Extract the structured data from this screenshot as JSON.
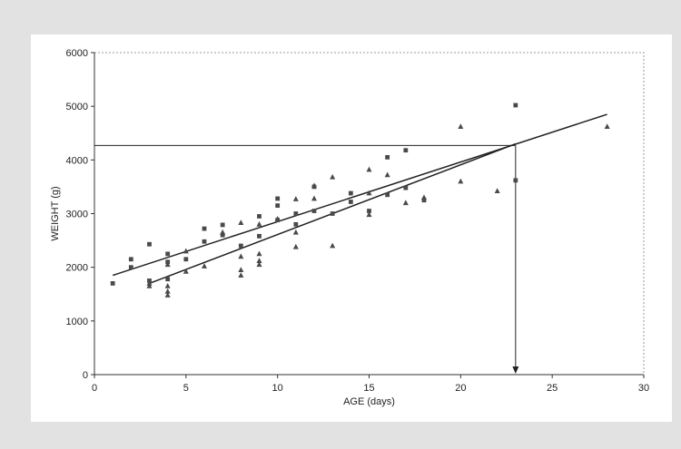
{
  "chart_data": {
    "type": "scatter",
    "xlabel": "AGE (days)",
    "ylabel": "WEIGHT (g)",
    "xlim": [
      0,
      30
    ],
    "ylim": [
      0,
      6000
    ],
    "xticks": [
      0,
      5,
      10,
      15,
      20,
      25,
      30
    ],
    "yticks": [
      0,
      1000,
      2000,
      3000,
      4000,
      5000,
      6000
    ],
    "grid": false,
    "series": [
      {
        "marker": "square",
        "points": [
          [
            1,
            1700
          ],
          [
            2,
            2000
          ],
          [
            2,
            2150
          ],
          [
            3,
            1750
          ],
          [
            3,
            2430
          ],
          [
            4,
            1780
          ],
          [
            4,
            2100
          ],
          [
            4,
            2250
          ],
          [
            5,
            2150
          ],
          [
            6,
            2480
          ],
          [
            6,
            2720
          ],
          [
            7,
            2600
          ],
          [
            7,
            2790
          ],
          [
            8,
            2400
          ],
          [
            9,
            2580
          ],
          [
            9,
            2950
          ],
          [
            10,
            2880
          ],
          [
            10,
            3150
          ],
          [
            10,
            3280
          ],
          [
            11,
            2800
          ],
          [
            11,
            3000
          ],
          [
            12,
            3050
          ],
          [
            12,
            3500
          ],
          [
            13,
            3000
          ],
          [
            14,
            3220
          ],
          [
            14,
            3380
          ],
          [
            15,
            3050
          ],
          [
            16,
            3350
          ],
          [
            16,
            4050
          ],
          [
            17,
            3480
          ],
          [
            17,
            4180
          ],
          [
            18,
            3250
          ],
          [
            23,
            3620
          ],
          [
            23,
            5020
          ]
        ]
      },
      {
        "marker": "triangle",
        "points": [
          [
            3,
            1650
          ],
          [
            3,
            1700
          ],
          [
            4,
            1480
          ],
          [
            4,
            1550
          ],
          [
            4,
            1650
          ],
          [
            4,
            2050
          ],
          [
            5,
            1920
          ],
          [
            5,
            2300
          ],
          [
            6,
            2020
          ],
          [
            7,
            2650
          ],
          [
            8,
            1850
          ],
          [
            8,
            1950
          ],
          [
            8,
            2200
          ],
          [
            8,
            2830
          ],
          [
            9,
            2050
          ],
          [
            9,
            2120
          ],
          [
            9,
            2250
          ],
          [
            9,
            2800
          ],
          [
            10,
            2900
          ],
          [
            11,
            2380
          ],
          [
            11,
            2650
          ],
          [
            11,
            3270
          ],
          [
            12,
            3280
          ],
          [
            12,
            3520
          ],
          [
            13,
            2400
          ],
          [
            13,
            3680
          ],
          [
            15,
            2980
          ],
          [
            15,
            3380
          ],
          [
            15,
            3820
          ],
          [
            16,
            3720
          ],
          [
            17,
            3200
          ],
          [
            18,
            3300
          ],
          [
            20,
            3600
          ],
          [
            20,
            4620
          ],
          [
            22,
            3420
          ],
          [
            28,
            4620
          ]
        ]
      }
    ],
    "trendlines": [
      {
        "x": [
          1,
          28
        ],
        "y": [
          1850,
          4850
        ]
      },
      {
        "x": [
          3,
          23
        ],
        "y": [
          1700,
          4300
        ]
      }
    ],
    "annotation": {
      "reference_y": 4270,
      "reference_x": 23,
      "arrow": "down to x-axis"
    },
    "colors": {
      "marker": "#4a4a4a",
      "line": "#222222",
      "background": "#e2e2e2",
      "plot": "#ffffff"
    }
  }
}
